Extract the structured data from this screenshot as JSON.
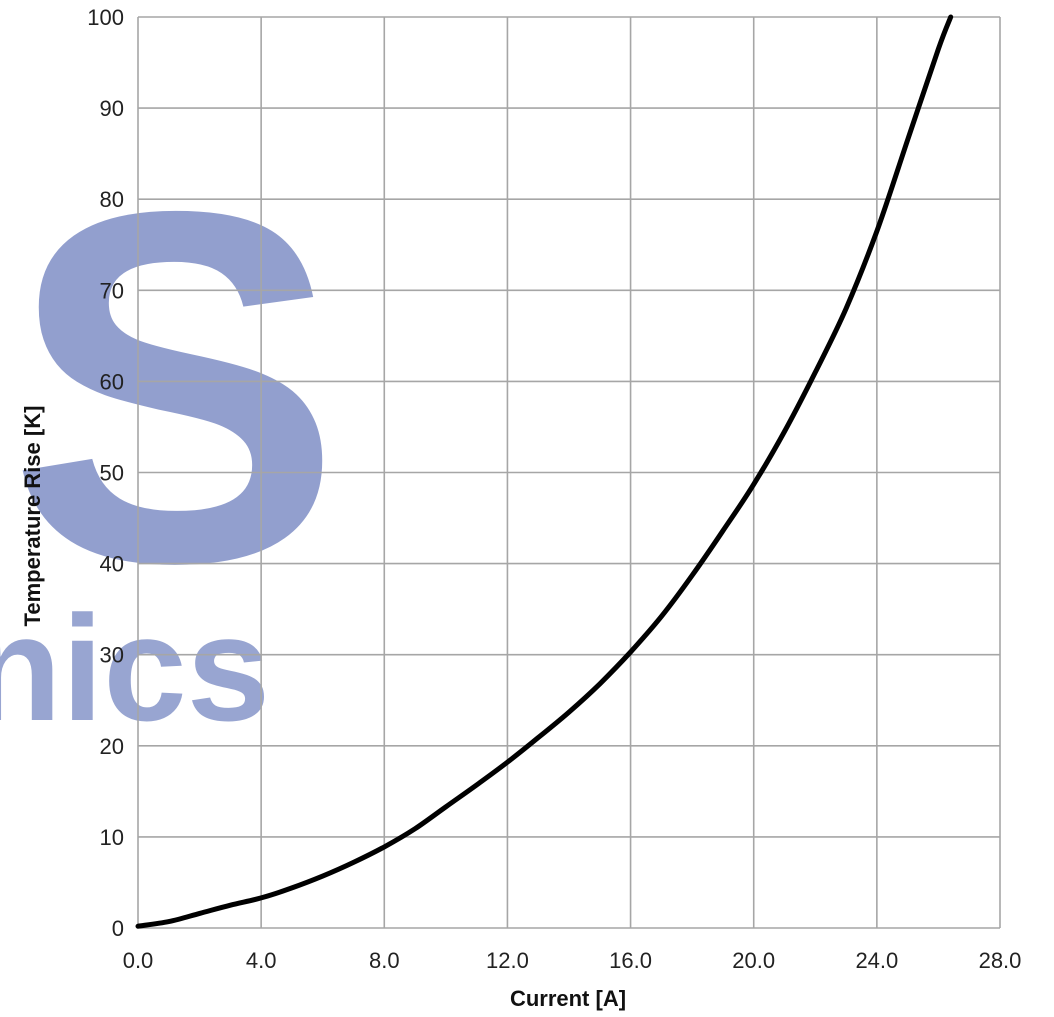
{
  "chart_data": {
    "type": "line",
    "xlabel": "Current [A]",
    "ylabel": "Temperature Rise [K]",
    "xlim": [
      0,
      28
    ],
    "ylim": [
      0,
      100
    ],
    "x_ticks": [
      "0.0",
      "4.0",
      "8.0",
      "12.0",
      "16.0",
      "20.0",
      "24.0",
      "28.0"
    ],
    "y_ticks": [
      "0",
      "10",
      "20",
      "30",
      "40",
      "50",
      "60",
      "70",
      "80",
      "90",
      "100"
    ],
    "grid": true,
    "line_color": "#000000",
    "series": [
      {
        "x": [
          0,
          1,
          2,
          3,
          4,
          5,
          6,
          7,
          8,
          9,
          10,
          11,
          12,
          13,
          14,
          15,
          16,
          17,
          18,
          19,
          20,
          21,
          22,
          23,
          24,
          25,
          26,
          26.4
        ],
        "y": [
          0.2,
          0.7,
          1.6,
          2.5,
          3.3,
          4.4,
          5.7,
          7.2,
          8.9,
          10.9,
          13.3,
          15.7,
          18.2,
          20.9,
          23.7,
          26.8,
          30.3,
          34.2,
          38.7,
          43.6,
          48.7,
          54.5,
          61.0,
          68.0,
          76.5,
          86.5,
          96.5,
          100.0
        ]
      }
    ],
    "watermark": [
      "S",
      "nics"
    ]
  }
}
